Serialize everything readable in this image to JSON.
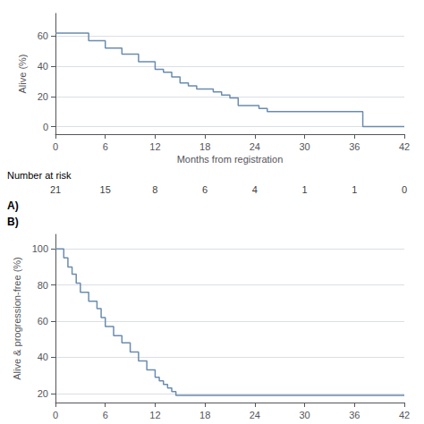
{
  "chart_data": [
    {
      "type": "step",
      "xlabel": "Months from registration",
      "ylabel": "Alive (%)",
      "x": [
        0,
        2,
        4,
        6,
        8,
        10,
        11,
        12,
        13,
        14,
        15,
        16,
        17,
        18,
        19,
        20,
        21,
        22,
        23,
        24,
        24.5,
        25,
        25.5,
        36,
        37,
        42
      ],
      "values": [
        62,
        62,
        57,
        52,
        48,
        43,
        43,
        38,
        36,
        33,
        29,
        27,
        25,
        25,
        23,
        21,
        19,
        14,
        14,
        14,
        12,
        12,
        10,
        10,
        0,
        0
      ],
      "color": "#6b8cae",
      "xlim": [
        0,
        42
      ],
      "ylim": [
        -5,
        75
      ],
      "xticks": [
        0,
        6,
        12,
        18,
        24,
        30,
        36,
        42
      ],
      "yticks": [
        0,
        20,
        40,
        60
      ],
      "grid": true,
      "risk_label": "Number at risk",
      "risk_times": [
        0,
        6,
        12,
        18,
        24,
        30,
        36,
        42
      ],
      "risk_numbers": [
        21,
        15,
        8,
        6,
        4,
        1,
        1,
        0
      ],
      "annotations": [
        "A)"
      ]
    },
    {
      "type": "step",
      "ylabel": "Alive & progression-free (%)",
      "x": [
        0,
        1,
        1.5,
        2,
        2.5,
        3,
        3.5,
        4,
        4.5,
        5,
        5.5,
        6,
        6.5,
        7,
        7.5,
        8,
        8.5,
        9,
        9.5,
        10,
        10.5,
        11,
        11.5,
        12,
        12.5,
        13,
        13.5,
        14,
        14.5,
        15,
        15.5,
        42
      ],
      "values": [
        100,
        95,
        90,
        86,
        81,
        76,
        76,
        71,
        71,
        67,
        62,
        57,
        57,
        52,
        52,
        48,
        48,
        43,
        43,
        38,
        38,
        33,
        33,
        29,
        27,
        25,
        23,
        21,
        19,
        19,
        19,
        19
      ],
      "color": "#6b8cae",
      "xlim": [
        0,
        42
      ],
      "ylim": [
        15,
        108
      ],
      "xticks": [
        0,
        6,
        12,
        18,
        24,
        30,
        36,
        42
      ],
      "yticks": [
        20,
        40,
        60,
        80,
        100
      ],
      "grid": true,
      "annotations": [
        "B)"
      ]
    }
  ]
}
